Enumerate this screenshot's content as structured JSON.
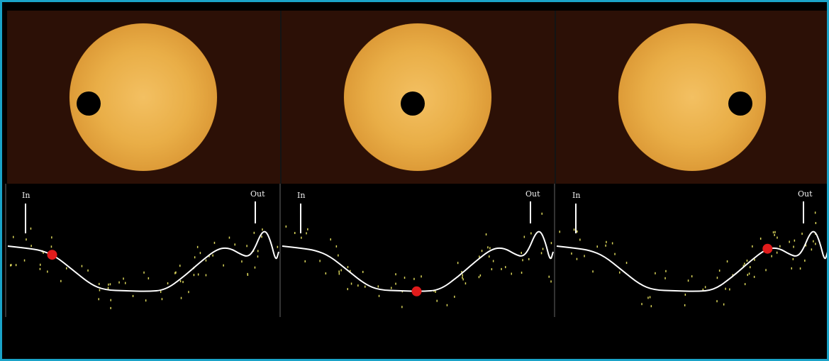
{
  "labels": {
    "in": "In",
    "out": "Out"
  },
  "colors": {
    "border": "#1aa3c8",
    "background": "#000000",
    "panel_background": "#2c1006",
    "sun": "#e9ae47",
    "curve": "#ffffff",
    "points": "#d9d45a",
    "marker": "#e11b1b"
  },
  "panels": [
    {
      "transit_phase": "ingress",
      "marker_position": 0.17
    },
    {
      "transit_phase": "mid-transit",
      "marker_position": 0.5
    },
    {
      "transit_phase": "egress",
      "marker_position": 0.78
    }
  ]
}
